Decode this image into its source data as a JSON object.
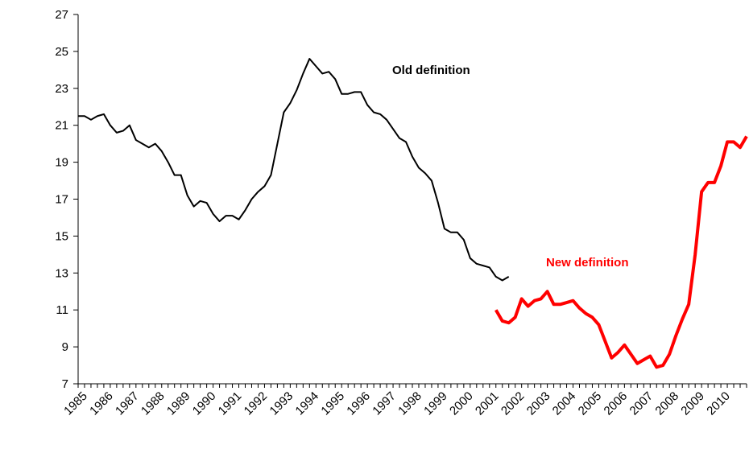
{
  "chart_data": {
    "type": "line",
    "categories": [
      "1985",
      null,
      null,
      null,
      "1986",
      null,
      null,
      null,
      "1987",
      null,
      null,
      null,
      "1988",
      null,
      null,
      null,
      "1989",
      null,
      null,
      null,
      "1990",
      null,
      null,
      null,
      "1991",
      null,
      null,
      null,
      "1992",
      null,
      null,
      null,
      "1993",
      null,
      null,
      null,
      "1994",
      null,
      null,
      null,
      "1995",
      null,
      null,
      null,
      "1996",
      null,
      null,
      null,
      "1997",
      null,
      null,
      null,
      "1998",
      null,
      null,
      null,
      "1999",
      null,
      null,
      null,
      "2000",
      null,
      null,
      null,
      "2001",
      null,
      null,
      null,
      "2002",
      null,
      null,
      null,
      "2003",
      null,
      null,
      null,
      "2004",
      null,
      null,
      null,
      "2005",
      null,
      null,
      null,
      "2006",
      null,
      null,
      null,
      "2007",
      null,
      null,
      null,
      "2008",
      null,
      null,
      null,
      "2009",
      null,
      null,
      null,
      "2010",
      null,
      null,
      null,
      null
    ],
    "series": [
      {
        "name": "Old definition",
        "color": "#000000",
        "width": 2,
        "values": [
          21.5,
          21.5,
          21.3,
          21.5,
          21.6,
          21.0,
          20.6,
          20.7,
          21.0,
          20.2,
          20.0,
          19.8,
          20.0,
          19.6,
          19.0,
          18.3,
          18.3,
          17.2,
          16.6,
          16.9,
          16.8,
          16.2,
          15.8,
          16.1,
          16.1,
          15.9,
          16.4,
          17.0,
          17.4,
          17.7,
          18.3,
          20.0,
          21.7,
          22.2,
          22.9,
          23.8,
          24.6,
          24.2,
          23.8,
          23.9,
          23.5,
          22.7,
          22.7,
          22.8,
          22.8,
          22.1,
          21.7,
          21.6,
          21.3,
          20.8,
          20.3,
          20.1,
          19.3,
          18.7,
          18.4,
          18.0,
          16.8,
          15.4,
          15.2,
          15.2,
          14.8,
          13.8,
          13.5,
          13.4,
          13.3,
          12.8,
          12.6,
          12.8,
          null,
          null,
          null,
          null,
          null,
          null,
          null,
          null,
          null,
          null,
          null,
          null,
          null,
          null,
          null,
          null,
          null,
          null,
          null,
          null,
          null,
          null,
          null,
          null,
          null,
          null,
          null,
          null,
          null,
          null,
          null,
          null,
          null,
          null,
          null,
          null,
          null
        ]
      },
      {
        "name": "New definition",
        "color": "#ff0000",
        "width": 4,
        "values": [
          null,
          null,
          null,
          null,
          null,
          null,
          null,
          null,
          null,
          null,
          null,
          null,
          null,
          null,
          null,
          null,
          null,
          null,
          null,
          null,
          null,
          null,
          null,
          null,
          null,
          null,
          null,
          null,
          null,
          null,
          null,
          null,
          null,
          null,
          null,
          null,
          null,
          null,
          null,
          null,
          null,
          null,
          null,
          null,
          null,
          null,
          null,
          null,
          null,
          null,
          null,
          null,
          null,
          null,
          null,
          null,
          null,
          null,
          null,
          null,
          null,
          null,
          null,
          null,
          null,
          11.0,
          10.4,
          10.3,
          10.6,
          11.6,
          11.2,
          11.5,
          11.6,
          12.0,
          11.3,
          11.3,
          11.4,
          11.5,
          11.1,
          10.8,
          10.6,
          10.2,
          9.3,
          8.4,
          8.7,
          9.1,
          8.6,
          8.1,
          8.3,
          8.5,
          7.9,
          8.0,
          8.6,
          9.6,
          10.5,
          11.3,
          14.0,
          17.4,
          17.9,
          17.9,
          18.8,
          20.1,
          20.1,
          19.8,
          20.4
        ]
      }
    ],
    "ylim": [
      7,
      27
    ],
    "yticks": [
      7,
      9,
      11,
      13,
      15,
      17,
      19,
      21,
      23,
      25,
      27
    ],
    "grid": false
  }
}
